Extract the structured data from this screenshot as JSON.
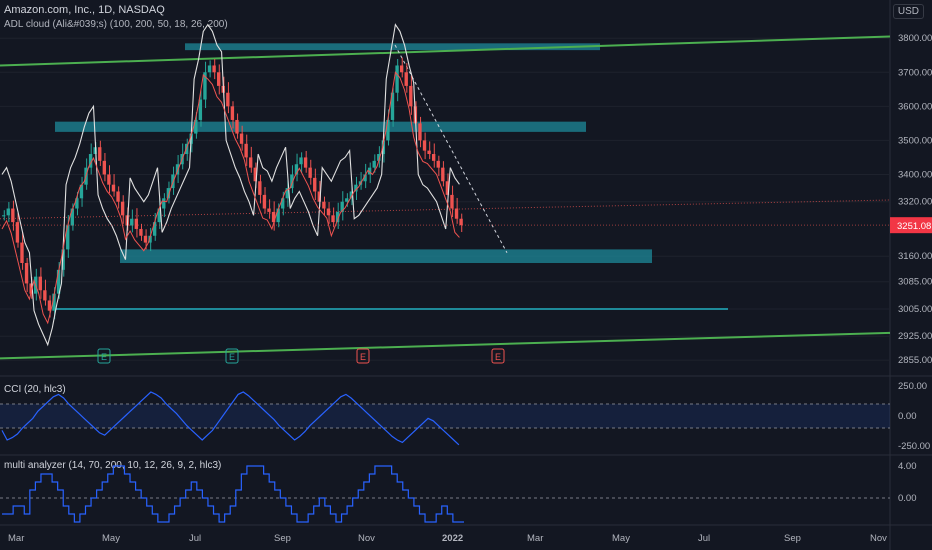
{
  "header": {
    "symbol_line": "Amazon.com, Inc., 1D, NASDAQ",
    "indicator_line": "ADL cloud (Ali&#039;s) (100, 200, 50, 18, 26, 200)",
    "currency": "USD"
  },
  "colors": {
    "background": "#131722",
    "bull": "#26a69a",
    "bear": "#ef5350",
    "channel": "#4caf50",
    "zone": "#1e8a99",
    "cloud_line": "#e0e0e0",
    "signal_line": "#ef5350",
    "osc": "#2962ff",
    "price_tag": "#f23645"
  },
  "chart_data": [
    {
      "type": "line",
      "title": "Amazon.com, Inc., 1D, NASDAQ",
      "y_ticks": [
        "3800.00",
        "3700.00",
        "3600.00",
        "3500.00",
        "3400.00",
        "3320.00",
        "3251.08",
        "3160.00",
        "3085.00",
        "3005.00",
        "2925.00",
        "2855.00"
      ],
      "x_ticks": [
        "Mar",
        "May",
        "Jul",
        "Sep",
        "Nov",
        "2022",
        "Mar",
        "May",
        "Jul",
        "Sep",
        "Nov"
      ],
      "last_price": "3251.08",
      "ylim": [
        2820,
        3830
      ],
      "close_series": [
        3280,
        3300,
        3260,
        3200,
        3140,
        3080,
        3050,
        3100,
        3060,
        3030,
        3000,
        3050,
        3120,
        3180,
        3250,
        3300,
        3330,
        3370,
        3420,
        3460,
        3480,
        3440,
        3400,
        3370,
        3350,
        3320,
        3280,
        3250,
        3270,
        3240,
        3220,
        3200,
        3220,
        3260,
        3300,
        3330,
        3360,
        3400,
        3430,
        3460,
        3490,
        3520,
        3560,
        3620,
        3700,
        3720,
        3700,
        3660,
        3640,
        3600,
        3560,
        3520,
        3490,
        3450,
        3420,
        3380,
        3340,
        3300,
        3290,
        3260,
        3300,
        3330,
        3360,
        3400,
        3430,
        3450,
        3420,
        3390,
        3350,
        3320,
        3300,
        3280,
        3260,
        3290,
        3320,
        3330,
        3350,
        3370,
        3380,
        3400,
        3420,
        3440,
        3460,
        3500,
        3560,
        3640,
        3720,
        3700,
        3660,
        3600,
        3550,
        3500,
        3470,
        3460,
        3440,
        3420,
        3380,
        3340,
        3300,
        3270,
        3251
      ],
      "earnings_markers": [
        "E",
        "E",
        "E",
        "E"
      ]
    },
    {
      "type": "line",
      "title": "CCI (20, hlc3)",
      "y_ticks": [
        "250.00",
        "0.00",
        "-250.00"
      ],
      "ylim": [
        -300,
        300
      ],
      "band": [
        100,
        -100
      ],
      "values": [
        -120,
        -200,
        -180,
        -150,
        -100,
        -60,
        -20,
        40,
        80,
        120,
        160,
        180,
        150,
        100,
        60,
        20,
        -20,
        -60,
        -100,
        -140,
        -160,
        -120,
        -80,
        -40,
        0,
        40,
        80,
        120,
        160,
        200,
        180,
        150,
        100,
        60,
        20,
        -30,
        -80,
        -120,
        -160,
        -200,
        -160,
        -120,
        -60,
        0,
        60,
        120,
        180,
        200,
        170,
        130,
        90,
        50,
        10,
        -30,
        -80,
        -120,
        -160,
        -200,
        -170,
        -130,
        -80,
        -40,
        0,
        40,
        80,
        120,
        160,
        180,
        150,
        110,
        70,
        30,
        -10,
        -50,
        -90,
        -130,
        -170,
        -200,
        -220,
        -180,
        -140,
        -100,
        -60,
        -20,
        -40,
        -80,
        -120,
        -160,
        -200,
        -240
      ]
    },
    {
      "type": "line",
      "title": "multi analyzer (14, 70, 200, 10, 12, 26, 9, 2, hlc3)",
      "y_ticks": [
        "4.00",
        "0.00"
      ],
      "ylim": [
        -3,
        5
      ],
      "values": [
        -2,
        -2,
        -1,
        -1,
        -2,
        1,
        2,
        3,
        3,
        2,
        1,
        -1,
        -2,
        -3,
        -2,
        -1,
        0,
        1,
        2,
        3,
        4,
        4,
        3,
        2,
        1,
        0,
        -1,
        -2,
        -3,
        -3,
        -2,
        -1,
        0,
        1,
        2,
        1,
        0,
        -1,
        -2,
        -3,
        -2,
        -1,
        1,
        3,
        4,
        4,
        4,
        3,
        2,
        1,
        0,
        -1,
        -2,
        -3,
        -3,
        -2,
        -1,
        0,
        -1,
        -2,
        -3,
        -2,
        -1,
        0,
        1,
        2,
        3,
        4,
        4,
        4,
        3,
        2,
        1,
        0,
        -1,
        -2,
        -3,
        -3,
        -2,
        -1,
        -2,
        -3,
        -3
      ]
    }
  ]
}
